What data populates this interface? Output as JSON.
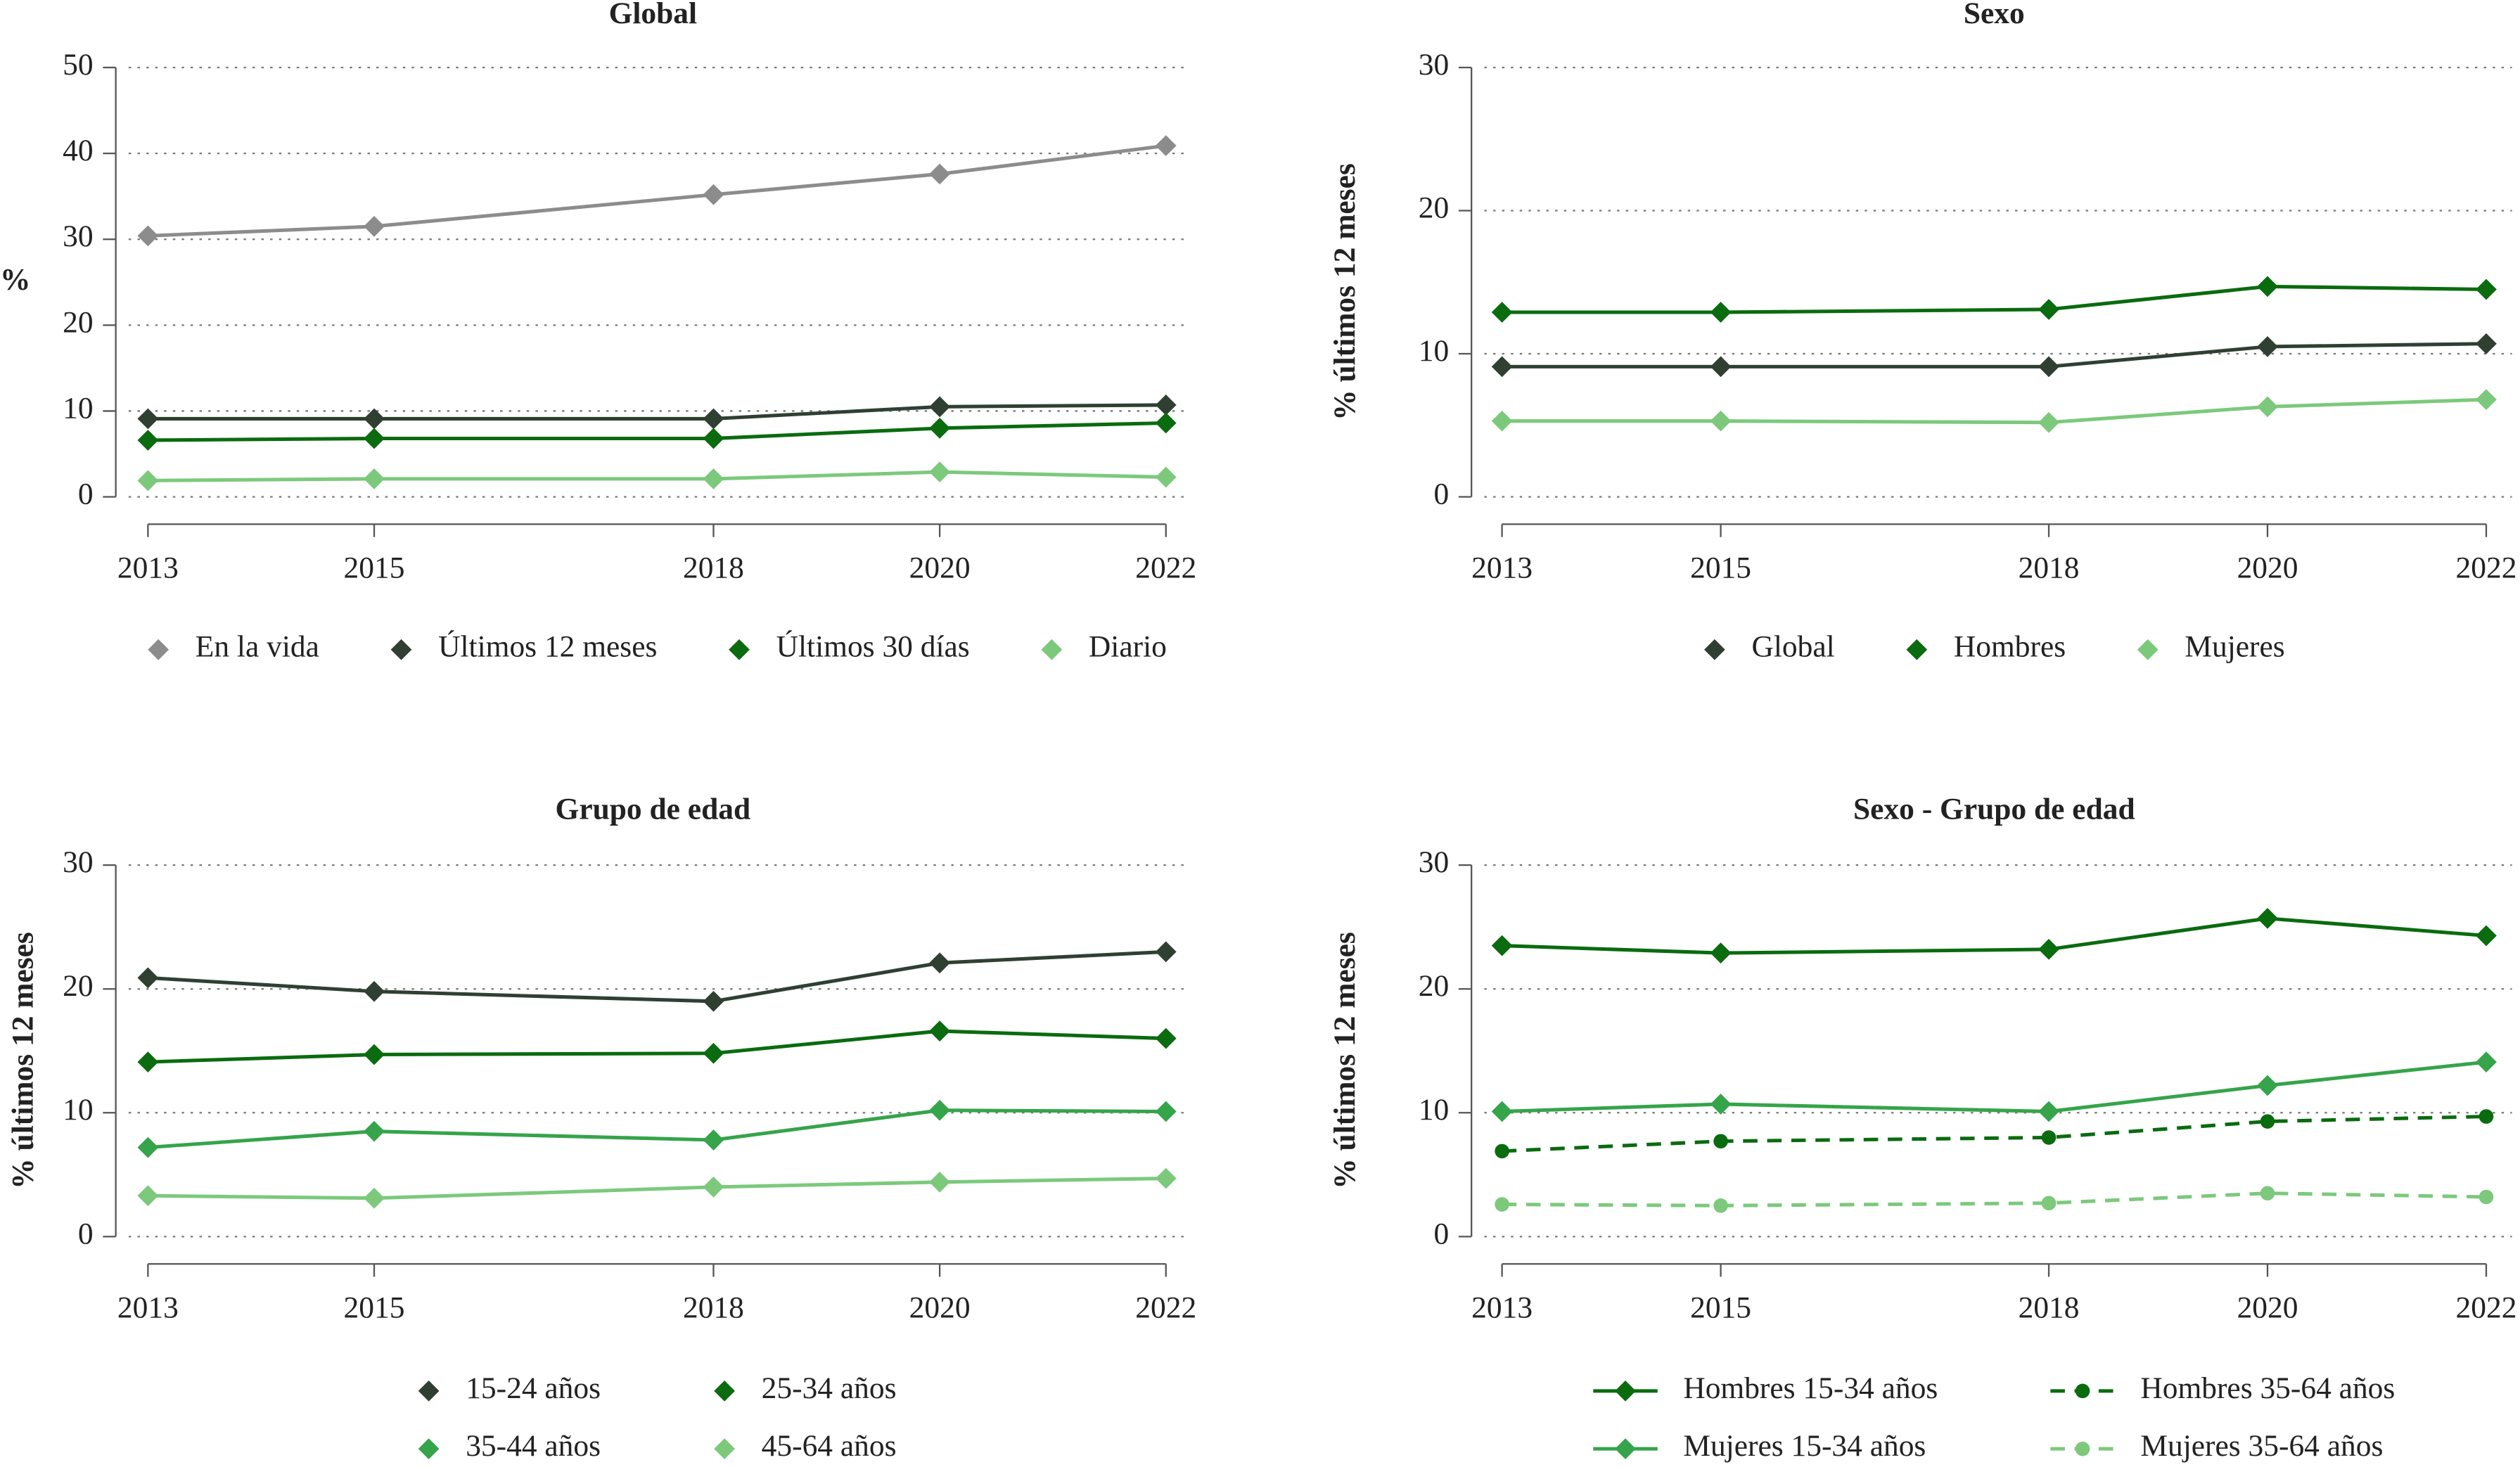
{
  "chart_data": [
    {
      "type": "line",
      "title": "Global",
      "y_label": "%",
      "x": [
        2013,
        2015,
        2018,
        2020,
        2022
      ],
      "xlim": [
        2013,
        2022
      ],
      "ylim": [
        0,
        50
      ],
      "yticks": [
        0,
        10,
        20,
        30,
        40,
        50
      ],
      "grid": true,
      "legend_columns": 4,
      "series": [
        {
          "name": "En la vida",
          "color": "#8c8c8c",
          "values": [
            30.4,
            31.5,
            35.2,
            37.6,
            40.9
          ]
        },
        {
          "name": "Últimos 12 meses",
          "color": "#2f4032",
          "values": [
            9.1,
            9.1,
            9.1,
            10.5,
            10.7
          ]
        },
        {
          "name": "Últimos 30 días",
          "color": "#0a6b0f",
          "values": [
            6.6,
            6.8,
            6.8,
            8.0,
            8.6
          ]
        },
        {
          "name": "Diario",
          "color": "#7cc97c",
          "values": [
            1.9,
            2.1,
            2.1,
            2.9,
            2.3
          ]
        }
      ]
    },
    {
      "type": "line",
      "title": "Sexo",
      "y_label": "% últimos 12 meses",
      "x": [
        2013,
        2015,
        2018,
        2020,
        2022
      ],
      "xlim": [
        2013,
        2022
      ],
      "ylim": [
        0,
        30
      ],
      "yticks": [
        0,
        10,
        20,
        30
      ],
      "grid": true,
      "legend_columns": 3,
      "series": [
        {
          "name": "Global",
          "color": "#2f4032",
          "values": [
            9.1,
            9.1,
            9.1,
            10.5,
            10.7
          ]
        },
        {
          "name": "Hombres",
          "color": "#0a6b0f",
          "values": [
            12.9,
            12.9,
            13.1,
            14.7,
            14.5
          ]
        },
        {
          "name": "Mujeres",
          "color": "#7cc97c",
          "values": [
            5.3,
            5.3,
            5.2,
            6.3,
            6.8
          ]
        }
      ]
    },
    {
      "type": "line",
      "title": "Grupo de edad",
      "y_label": "%  últimos 12 meses",
      "x": [
        2013,
        2015,
        2018,
        2020,
        2022
      ],
      "xlim": [
        2013,
        2022
      ],
      "ylim": [
        0,
        30
      ],
      "yticks": [
        0,
        10,
        20,
        30
      ],
      "grid": true,
      "legend_columns": 2,
      "series": [
        {
          "name": "15-24 años",
          "color": "#2f4032",
          "values": [
            20.9,
            19.8,
            19.0,
            22.1,
            23.0
          ]
        },
        {
          "name": "25-34 años",
          "color": "#0a6b0f",
          "values": [
            14.1,
            14.7,
            14.8,
            16.6,
            16.0
          ]
        },
        {
          "name": "35-44 años",
          "color": "#35a44a",
          "values": [
            7.2,
            8.5,
            7.8,
            10.2,
            10.1
          ]
        },
        {
          "name": "45-64 años",
          "color": "#7cc97c",
          "values": [
            3.3,
            3.1,
            4.0,
            4.4,
            4.7
          ]
        }
      ]
    },
    {
      "type": "line",
      "title": "Sexo - Grupo de edad",
      "y_label": "%  últimos 12 meses",
      "x": [
        2013,
        2015,
        2018,
        2020,
        2022
      ],
      "xlim": [
        2013,
        2022
      ],
      "ylim": [
        0,
        30
      ],
      "yticks": [
        0,
        10,
        20,
        30
      ],
      "grid": true,
      "legend_columns": 2,
      "legend_lines": true,
      "series": [
        {
          "name": "Hombres 15-34 años",
          "color": "#0a6b0f",
          "marker": "diamond",
          "dash": false,
          "values": [
            23.5,
            22.9,
            23.2,
            25.7,
            24.3
          ]
        },
        {
          "name": "Hombres 35-64 años",
          "color": "#0a6b0f",
          "marker": "circle",
          "dash": true,
          "values": [
            6.9,
            7.7,
            8.0,
            9.3,
            9.7
          ]
        },
        {
          "name": "Mujeres 15-34 años",
          "color": "#35a44a",
          "marker": "diamond",
          "dash": false,
          "values": [
            10.1,
            10.7,
            10.1,
            12.2,
            14.1
          ]
        },
        {
          "name": "Mujeres 35-64 años",
          "color": "#7cc97c",
          "marker": "circle",
          "dash": true,
          "values": [
            2.6,
            2.5,
            2.7,
            3.5,
            3.2
          ]
        }
      ]
    }
  ]
}
